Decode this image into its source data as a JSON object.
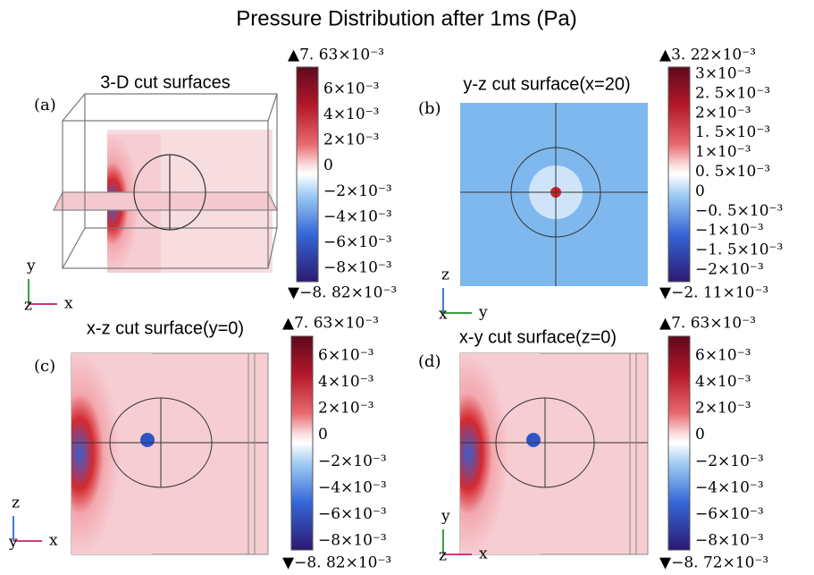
{
  "title": "Pressure Distribution after 1ms (Pa)",
  "panels": [
    {
      "label": "(a)",
      "title": "3-D cut surfaces",
      "colorbar": {
        "max": "▲7. 63×10⁻³",
        "ticks": [
          "6×10⁻³",
          "4×10⁻³",
          "2×10⁻³",
          "0",
          "−2×10⁻³",
          "−4×10⁻³",
          "−6×10⁻³",
          "−8×10⁻³"
        ],
        "min": "▼−8. 82×10⁻³"
      },
      "axes": [
        "y",
        "z",
        "x"
      ]
    },
    {
      "label": "(b)",
      "title": "y-z cut surface(x=20)",
      "colorbar": {
        "max": "▲3. 22×10⁻³",
        "ticks": [
          "3×10⁻³",
          "2. 5×10⁻³",
          "2×10⁻³",
          "1. 5×10⁻³",
          "1×10⁻³",
          "0. 5×10⁻³",
          "0",
          "−0. 5×10⁻³",
          "−1×10⁻³",
          "−1. 5×10⁻³",
          "−2×10⁻³"
        ],
        "min": "▼−2. 11×10⁻³"
      },
      "axes": [
        "z",
        "x",
        "y"
      ]
    },
    {
      "label": "(c)",
      "title": "x-z cut surface(y=0)",
      "colorbar": {
        "max": "▲7. 63×10⁻³",
        "ticks": [
          "6×10⁻³",
          "4×10⁻³",
          "2×10⁻³",
          "0",
          "−2×10⁻³",
          "−4×10⁻³",
          "−6×10⁻³",
          "−8×10⁻³"
        ],
        "min": "▼−8. 82×10⁻³"
      },
      "axes": [
        "z",
        "y",
        "x"
      ]
    },
    {
      "label": "(d)",
      "title": "x-y cut surface(z=0)",
      "colorbar": {
        "max": "▲7. 63×10⁻³",
        "ticks": [
          "6×10⁻³",
          "4×10⁻³",
          "2×10⁻³",
          "0",
          "−2×10⁻³",
          "−4×10⁻³",
          "−6×10⁻³",
          "−8×10⁻³"
        ],
        "min": "▼−8. 72×10⁻³"
      },
      "axes": [
        "y",
        "z",
        "x"
      ]
    }
  ]
}
